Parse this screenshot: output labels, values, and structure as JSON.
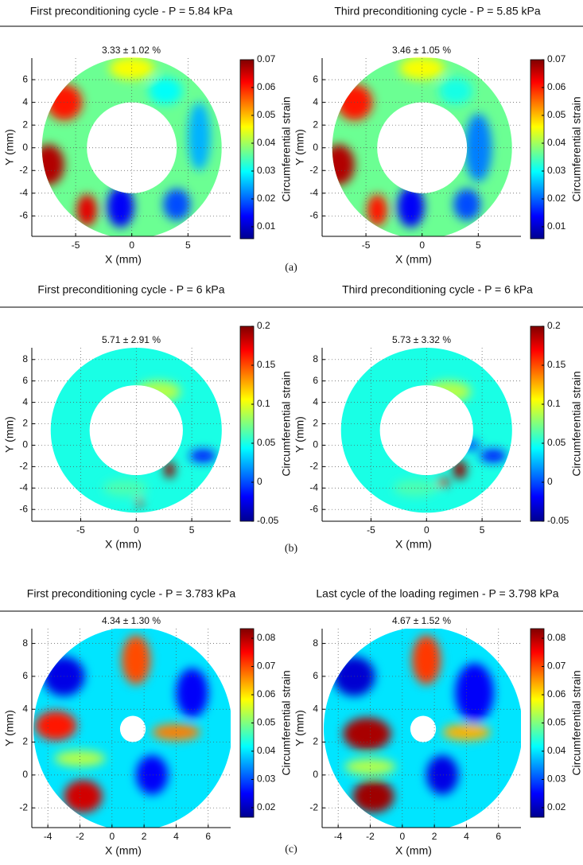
{
  "chart_data": [
    {
      "type": "heatmap",
      "title": "First preconditioning cycle - P = 5.84 kPa",
      "annotation": "3.33 ± 1.02 %",
      "xlabel": "X (mm)",
      "ylabel": "Y (mm)",
      "colorbar_label": "Circumferential strain",
      "xlim": [
        -8.9,
        8.8
      ],
      "ylim": [
        -7.8,
        7.9
      ],
      "xticks": [
        -5,
        0,
        5
      ],
      "yticks": [
        -6,
        -4,
        -2,
        0,
        2,
        4,
        6
      ],
      "clim": [
        0.0057,
        0.07
      ],
      "cticks": [
        0.01,
        0.02,
        0.03,
        0.04,
        0.05,
        0.06,
        0.07
      ],
      "grid": true,
      "colormap": "jet"
    },
    {
      "type": "heatmap",
      "title": "Third preconditioning cycle - P = 5.85 kPa",
      "annotation": "3.46 ± 1.05 %",
      "xlabel": "X (mm)",
      "ylabel": "Y (mm)",
      "colorbar_label": "Circumferential strain",
      "xlim": [
        -8.9,
        8.8
      ],
      "ylim": [
        -7.8,
        7.9
      ],
      "xticks": [
        -5,
        0,
        5
      ],
      "yticks": [
        -6,
        -4,
        -2,
        0,
        2,
        4,
        6
      ],
      "clim": [
        0.0057,
        0.07
      ],
      "cticks": [
        0.01,
        0.02,
        0.03,
        0.04,
        0.05,
        0.06,
        0.07
      ],
      "grid": true,
      "colormap": "jet"
    },
    {
      "type": "heatmap",
      "title": "First preconditioning cycle - P = 6 kPa",
      "annotation": "5.71 ± 2.91 %",
      "xlabel": "X (mm)",
      "ylabel": "Y (mm)",
      "colorbar_label": "Circumferential strain",
      "xlim": [
        -9.4,
        8.5
      ],
      "ylim": [
        -7.1,
        9.1
      ],
      "xticks": [
        -5,
        0,
        5
      ],
      "yticks": [
        -6,
        -4,
        -2,
        0,
        2,
        4,
        6,
        8
      ],
      "clim": [
        -0.05,
        0.2
      ],
      "cticks": [
        -0.05,
        0,
        0.05,
        0.1,
        0.15,
        0.2
      ],
      "grid": true,
      "colormap": "jet"
    },
    {
      "type": "heatmap",
      "title": "Third preconditioning cycle - P = 6 kPa",
      "annotation": "5.73 ± 3.32 %",
      "xlabel": "X (mm)",
      "ylabel": "Y (mm)",
      "colorbar_label": "Circumferential strain",
      "xlim": [
        -9.4,
        8.5
      ],
      "ylim": [
        -7.1,
        9.1
      ],
      "xticks": [
        -5,
        0,
        5
      ],
      "yticks": [
        -6,
        -4,
        -2,
        0,
        2,
        4,
        6,
        8
      ],
      "clim": [
        -0.05,
        0.2
      ],
      "cticks": [
        -0.05,
        0,
        0.05,
        0.1,
        0.15,
        0.2
      ],
      "grid": true,
      "colormap": "jet"
    },
    {
      "type": "heatmap",
      "title": "First preconditioning cycle - P = 3.783 kPa",
      "annotation": "4.34 ± 1.30 %",
      "xlabel": "X (mm)",
      "ylabel": "Y (mm)",
      "colorbar_label": "Circumferential strain",
      "xlim": [
        -5,
        7.4
      ],
      "ylim": [
        -3.2,
        8.9
      ],
      "xticks": [
        -4,
        -2,
        0,
        2,
        4,
        6
      ],
      "yticks": [
        -2,
        0,
        2,
        4,
        6,
        8
      ],
      "clim": [
        0.0166,
        0.0834
      ],
      "cticks": [
        0.02,
        0.03,
        0.04,
        0.05,
        0.06,
        0.07,
        0.08
      ],
      "grid": true,
      "colormap": "jet"
    },
    {
      "type": "heatmap",
      "title": "Last cycle of the loading regimen - P = 3.798 kPa",
      "annotation": "4.67 ± 1.52 %",
      "xlabel": "X (mm)",
      "ylabel": "Y (mm)",
      "colorbar_label": "Circumferential strain",
      "xlim": [
        -5,
        7.4
      ],
      "ylim": [
        -3.2,
        8.9
      ],
      "xticks": [
        -4,
        -2,
        0,
        2,
        4,
        6
      ],
      "yticks": [
        -2,
        0,
        2,
        4,
        6,
        8
      ],
      "clim": [
        0.0166,
        0.0834
      ],
      "cticks": [
        0.02,
        0.03,
        0.04,
        0.05,
        0.06,
        0.07,
        0.08
      ],
      "grid": true,
      "colormap": "jet"
    }
  ],
  "panel_labels": [
    "(a)",
    "(b)",
    "(c)"
  ]
}
